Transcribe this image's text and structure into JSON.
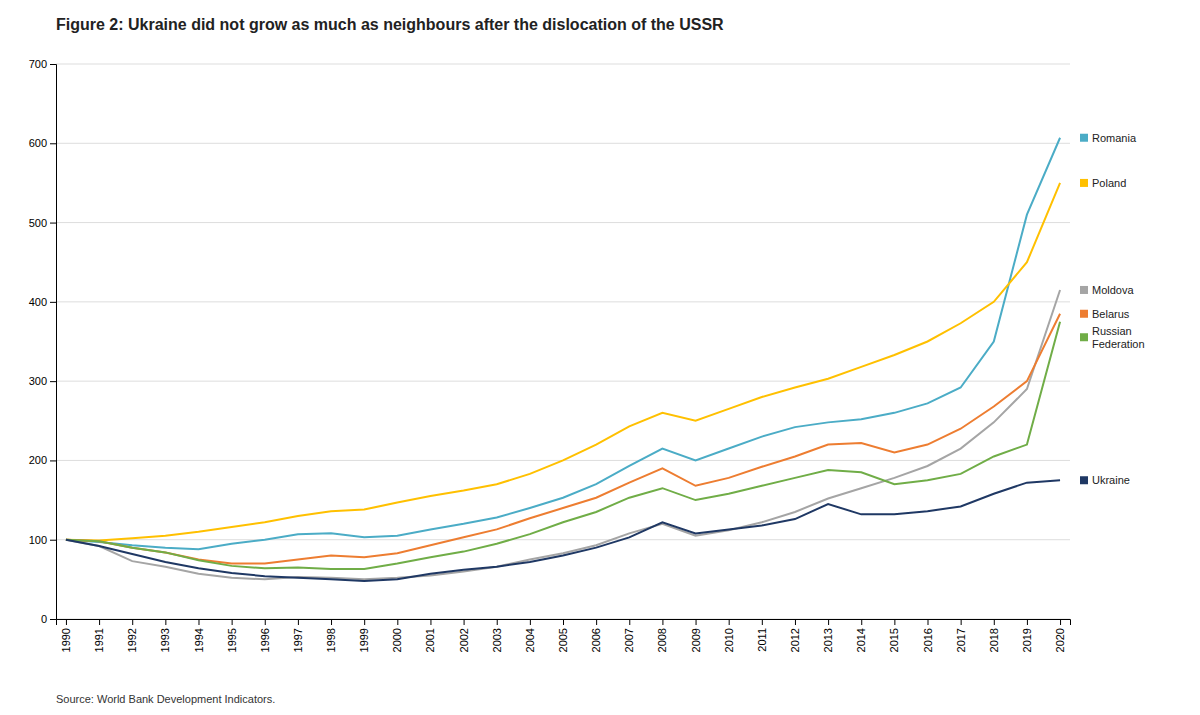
{
  "chart_data": {
    "type": "line",
    "title": "Figure 2: Ukraine did not grow as much as neighbours after the dislocation of the USSR",
    "source": "Source: World Bank Development Indicators.",
    "x": [
      1990,
      1991,
      1992,
      1993,
      1994,
      1995,
      1996,
      1997,
      1998,
      1999,
      2000,
      2001,
      2002,
      2003,
      2004,
      2005,
      2006,
      2007,
      2008,
      2009,
      2010,
      2011,
      2012,
      2013,
      2014,
      2015,
      2016,
      2017,
      2018,
      2019,
      2020
    ],
    "series": [
      {
        "name": "Romania",
        "color": "#4bacc6",
        "values": [
          100,
          97,
          93,
          90,
          88,
          95,
          100,
          107,
          108,
          103,
          105,
          113,
          120,
          128,
          140,
          153,
          170,
          193,
          215,
          200,
          215,
          230,
          242,
          248,
          252,
          260,
          272,
          292,
          350,
          510,
          607
        ]
      },
      {
        "name": "Poland",
        "color": "#ffc000",
        "values": [
          100,
          99,
          102,
          105,
          110,
          116,
          122,
          130,
          136,
          138,
          147,
          155,
          162,
          170,
          183,
          200,
          220,
          243,
          260,
          250,
          265,
          280,
          292,
          303,
          318,
          333,
          350,
          373,
          400,
          450,
          550
        ]
      },
      {
        "name": "Moldova",
        "color": "#a5a5a5",
        "values": [
          100,
          92,
          73,
          66,
          57,
          52,
          50,
          53,
          52,
          50,
          52,
          55,
          60,
          66,
          75,
          83,
          93,
          108,
          120,
          105,
          112,
          122,
          135,
          152,
          165,
          178,
          193,
          215,
          248,
          290,
          415
        ]
      },
      {
        "name": "Belarus",
        "color": "#ed7d31",
        "values": [
          100,
          98,
          90,
          84,
          75,
          70,
          70,
          75,
          80,
          78,
          83,
          93,
          103,
          113,
          127,
          140,
          153,
          172,
          190,
          168,
          178,
          192,
          205,
          220,
          222,
          210,
          220,
          240,
          268,
          300,
          385
        ]
      },
      {
        "name": "Russian\nFederation",
        "color": "#70ad47",
        "values": [
          100,
          98,
          90,
          84,
          74,
          67,
          64,
          65,
          63,
          63,
          70,
          78,
          85,
          95,
          107,
          122,
          135,
          153,
          165,
          150,
          158,
          168,
          178,
          188,
          185,
          170,
          175,
          183,
          205,
          220,
          375
        ]
      },
      {
        "name": "Ukraine",
        "color": "#1f3864",
        "values": [
          100,
          92,
          82,
          72,
          64,
          58,
          54,
          52,
          50,
          48,
          50,
          57,
          62,
          66,
          72,
          80,
          90,
          103,
          122,
          108,
          113,
          118,
          126,
          145,
          132,
          132,
          136,
          142,
          158,
          172,
          175
        ]
      }
    ],
    "xlim": [
      1989.7,
      2020.3
    ],
    "xticks": [
      1990,
      1991,
      1992,
      1993,
      1994,
      1995,
      1996,
      1997,
      1998,
      1999,
      2000,
      2001,
      2002,
      2003,
      2004,
      2005,
      2006,
      2007,
      2008,
      2009,
      2010,
      2011,
      2012,
      2013,
      2014,
      2015,
      2016,
      2017,
      2018,
      2019,
      2020
    ],
    "ylim": [
      0,
      700
    ],
    "yticks": [
      0,
      100,
      200,
      300,
      400,
      500,
      600,
      700
    ],
    "grid": true
  }
}
